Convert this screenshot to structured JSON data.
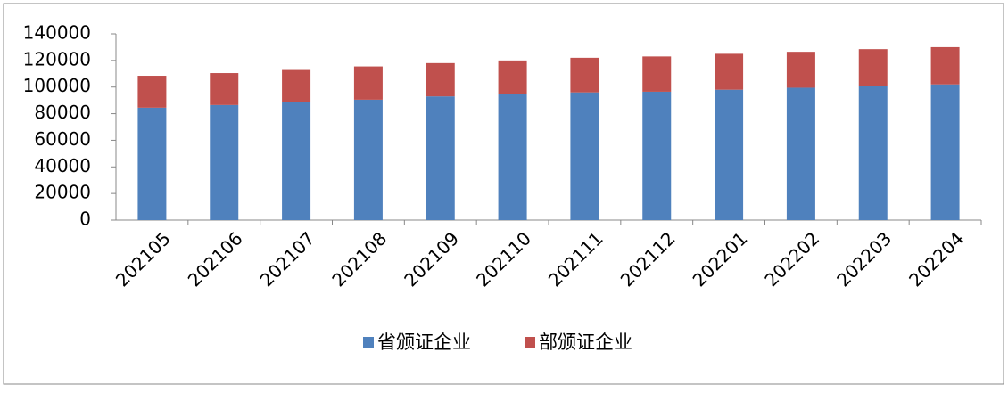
{
  "chart_data": {
    "type": "stacked-bar",
    "categories": [
      "202105",
      "202106",
      "202107",
      "202108",
      "202109",
      "202110",
      "202111",
      "202112",
      "202201",
      "202202",
      "202203",
      "202204"
    ],
    "series": [
      {
        "name": "省颁证企业",
        "color": "#4f81bd",
        "values": [
          84500,
          86500,
          88500,
          90500,
          93000,
          94500,
          96000,
          96500,
          98000,
          99500,
          101000,
          102000
        ]
      },
      {
        "name": "部颁证企业",
        "color": "#c0504d",
        "values": [
          24000,
          24000,
          25000,
          25000,
          25000,
          25500,
          26000,
          26500,
          27000,
          27000,
          27500,
          28000
        ]
      }
    ],
    "ylim": [
      0,
      140000
    ],
    "yticks": [
      0,
      20000,
      40000,
      60000,
      80000,
      100000,
      120000,
      140000
    ],
    "legend": "bottom"
  }
}
